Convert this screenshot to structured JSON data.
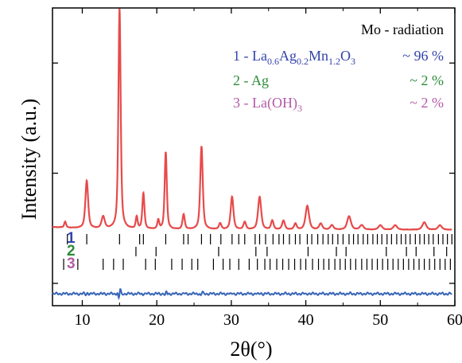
{
  "chart_data": {
    "type": "line",
    "xlabel": "2θ(°)",
    "ylabel": "Intensity (a.u.)",
    "xlim": [
      6,
      60
    ],
    "ylim": [
      0,
      100
    ],
    "x_ticks": [
      10,
      20,
      30,
      40,
      50,
      60
    ],
    "y_ticks_labeled": false,
    "annotation": "Mo - radiation",
    "legend": [
      {
        "index": "1",
        "label_base": "1 - La",
        "label_parts": [
          {
            "t": "1 - La",
            "sub": false
          },
          {
            "t": "0.6",
            "sub": true
          },
          {
            "t": "Ag",
            "sub": false
          },
          {
            "t": "0.2",
            "sub": true
          },
          {
            "t": "Mn",
            "sub": false
          },
          {
            "t": "1.2",
            "sub": true
          },
          {
            "t": "O",
            "sub": false
          },
          {
            "t": "3",
            "sub": true
          }
        ],
        "fraction": "~ 96 %",
        "color": "#3344aa"
      },
      {
        "index": "2",
        "label_parts": [
          {
            "t": "2 - Ag",
            "sub": false
          }
        ],
        "fraction": "~ 2 %",
        "color": "#2e8b3a"
      },
      {
        "index": "3",
        "label_parts": [
          {
            "t": "3 - La(OH)",
            "sub": false
          },
          {
            "t": "3",
            "sub": true
          }
        ],
        "fraction": "~ 2 %",
        "color": "#b45aa8"
      }
    ],
    "colors": {
      "observed": "#222222",
      "calculated": "#e84a4a",
      "difference": "#3a66b8",
      "index1": "#3344aa",
      "index2": "#2e8b3a",
      "index3": "#b45aa8",
      "ticks": "#000000"
    },
    "baseline": 25.5,
    "peaks": [
      {
        "x": 7.7,
        "h": 2.0,
        "w": 0.15
      },
      {
        "x": 10.6,
        "h": 16.0,
        "w": 0.22
      },
      {
        "x": 12.8,
        "h": 4.0,
        "w": 0.25
      },
      {
        "x": 15.0,
        "h": 74.0,
        "w": 0.18
      },
      {
        "x": 17.3,
        "h": 4.0,
        "w": 0.15
      },
      {
        "x": 18.2,
        "h": 12.0,
        "w": 0.17
      },
      {
        "x": 20.2,
        "h": 3.0,
        "w": 0.15
      },
      {
        "x": 21.2,
        "h": 26.0,
        "w": 0.17
      },
      {
        "x": 23.6,
        "h": 5.0,
        "w": 0.18
      },
      {
        "x": 26.0,
        "h": 28.0,
        "w": 0.2
      },
      {
        "x": 28.5,
        "h": 2.0,
        "w": 0.2
      },
      {
        "x": 30.1,
        "h": 11.0,
        "w": 0.22
      },
      {
        "x": 31.8,
        "h": 2.5,
        "w": 0.2
      },
      {
        "x": 33.8,
        "h": 11.0,
        "w": 0.25
      },
      {
        "x": 35.5,
        "h": 3.0,
        "w": 0.2
      },
      {
        "x": 37.0,
        "h": 3.0,
        "w": 0.22
      },
      {
        "x": 38.6,
        "h": 2.0,
        "w": 0.2
      },
      {
        "x": 40.2,
        "h": 8.0,
        "w": 0.28
      },
      {
        "x": 42.0,
        "h": 2.0,
        "w": 0.25
      },
      {
        "x": 43.5,
        "h": 1.5,
        "w": 0.25
      },
      {
        "x": 45.8,
        "h": 4.5,
        "w": 0.3
      },
      {
        "x": 47.5,
        "h": 1.5,
        "w": 0.3
      },
      {
        "x": 50.0,
        "h": 1.5,
        "w": 0.3
      },
      {
        "x": 52.0,
        "h": 1.5,
        "w": 0.3
      },
      {
        "x": 55.9,
        "h": 2.5,
        "w": 0.3
      },
      {
        "x": 58.0,
        "h": 1.5,
        "w": 0.3
      }
    ],
    "difference_level": 4.0,
    "reflections_1": [
      8.0,
      10.6,
      15.0,
      17.7,
      18.2,
      21.2,
      23.6,
      24.2,
      26.0,
      27.2,
      28.6,
      30.1,
      31.0,
      31.8,
      33.2,
      33.8,
      34.6,
      35.6,
      36.4,
      37.0,
      37.8,
      38.6,
      39.2,
      40.2,
      40.8,
      41.6,
      42.3,
      43.0,
      43.6,
      44.3,
      45.0,
      45.8,
      46.4,
      47.0,
      47.7,
      48.3,
      49.0,
      49.6,
      50.2,
      50.9,
      51.5,
      52.2,
      52.8,
      53.4,
      54.0,
      54.7,
      55.3,
      55.9,
      56.5,
      57.1,
      57.8,
      58.4,
      59.0,
      59.6
    ],
    "reflections_2": [
      17.2,
      19.9,
      28.3,
      33.3,
      34.8,
      40.3,
      44.1,
      45.4,
      50.8,
      53.5,
      54.8,
      57.2,
      58.9
    ],
    "reflections_3": [
      7.5,
      9.4,
      12.8,
      14.2,
      15.5,
      18.5,
      19.8,
      22.0,
      23.4,
      24.7,
      25.5,
      27.6,
      28.9,
      29.8,
      31.0,
      32.4,
      33.5,
      34.5,
      35.2,
      36.1,
      36.9,
      37.7,
      38.5,
      39.3,
      40.0,
      40.9,
      41.7,
      42.4,
      43.1,
      43.9,
      44.6,
      45.3,
      46.0,
      46.7,
      47.5,
      48.2,
      48.9,
      49.6,
      50.3,
      51.0,
      51.7,
      52.4,
      53.1,
      53.8,
      54.5,
      55.2,
      55.9,
      56.6,
      57.3,
      58.0,
      58.7,
      59.4
    ]
  }
}
